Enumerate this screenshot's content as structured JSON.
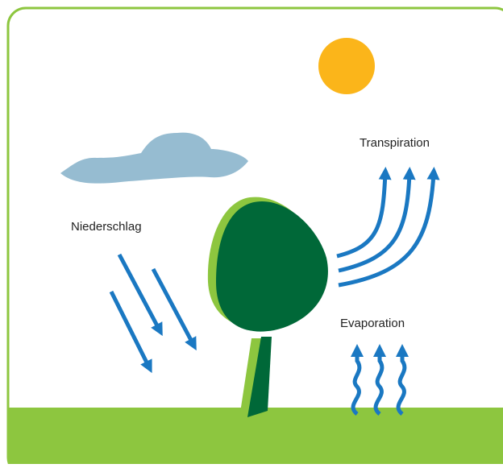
{
  "labels": {
    "precipitation": "Niederschlag",
    "transpiration": "Transpiration",
    "evaporation": "Evaporation"
  }
}
